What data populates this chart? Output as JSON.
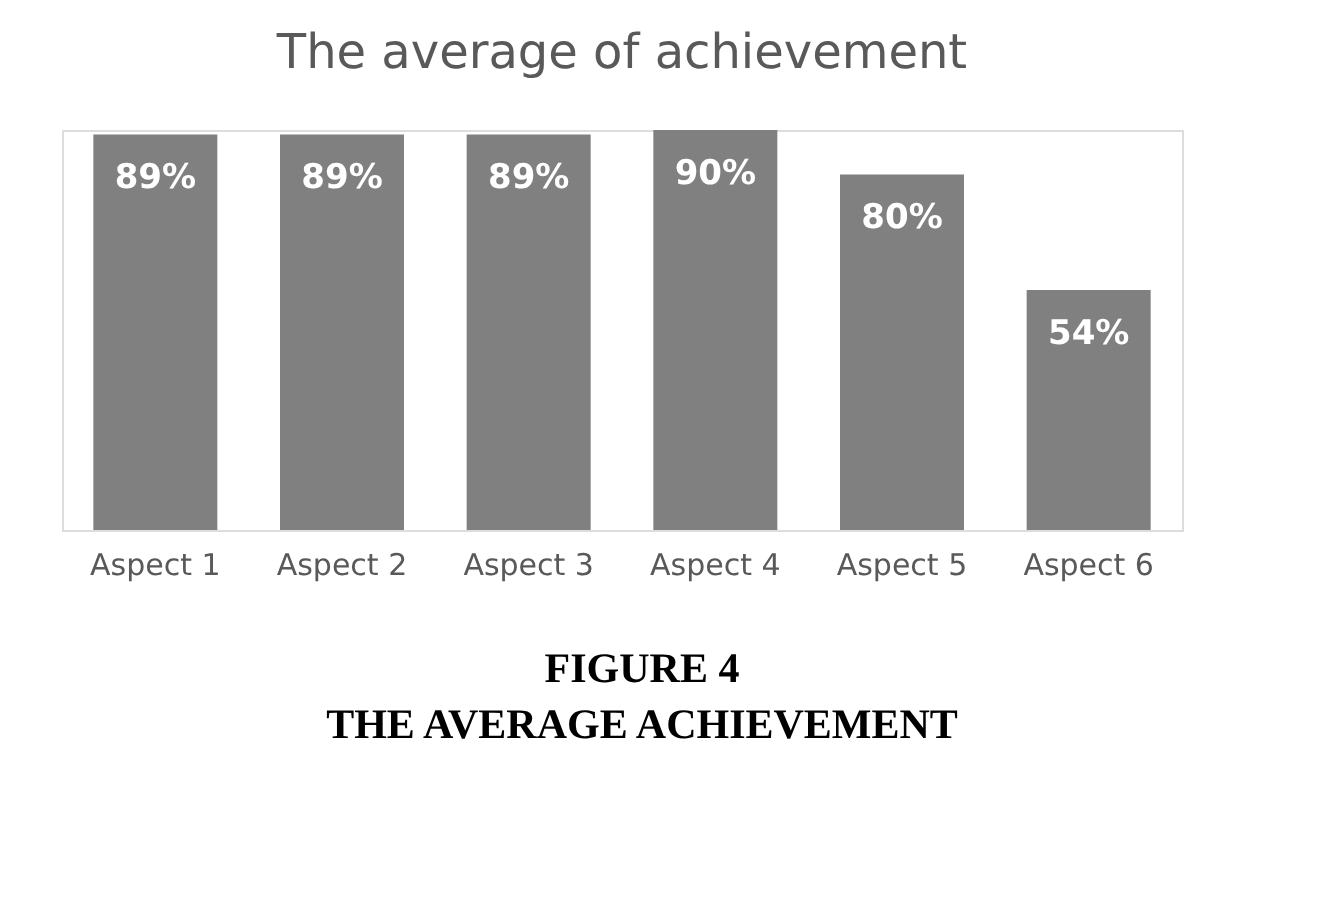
{
  "chart_data": {
    "type": "bar",
    "title": "The average of achievement",
    "categories": [
      "Aspect 1",
      "Aspect 2",
      "Aspect 3",
      "Aspect 4",
      "Aspect 5",
      "Aspect 6"
    ],
    "values": [
      89,
      89,
      89,
      90,
      80,
      54
    ],
    "value_labels": [
      "89%",
      "89%",
      "89%",
      "90%",
      "80%",
      "54%"
    ],
    "color": "#808080",
    "annotations": [
      "FIGURE 4",
      "THE AVERAGE ACHIEVEMENT"
    ],
    "grid": false
  }
}
